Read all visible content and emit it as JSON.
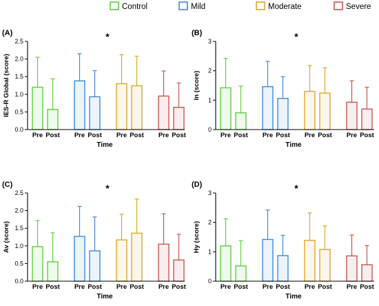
{
  "legend": [
    {
      "label": "Control",
      "color": "#5ccf3e"
    },
    {
      "label": "Mild",
      "color": "#3c88dc"
    },
    {
      "label": "Moderate",
      "color": "#d9a82a"
    },
    {
      "label": "Severe",
      "color": "#c9554d"
    }
  ],
  "chart_data": [
    {
      "type": "bar",
      "panel_label": "(A)",
      "ylabel": "IES-R Global (score)",
      "xlabel": "Time",
      "ylim": [
        0,
        2.5
      ],
      "yticks": [
        "0.0",
        "0.5",
        "1.0",
        "1.5",
        "2.0",
        "2.5"
      ],
      "ytick_values": [
        0,
        0.5,
        1.0,
        1.5,
        2.0,
        2.5
      ],
      "categories": [
        "Pre",
        "Post"
      ],
      "significance": "*",
      "groups": [
        {
          "name": "Control",
          "values": [
            1.2,
            0.57
          ],
          "errors": [
            0.85,
            0.87
          ]
        },
        {
          "name": "Mild",
          "values": [
            1.38,
            0.93
          ],
          "errors": [
            0.77,
            0.74
          ]
        },
        {
          "name": "Moderate",
          "values": [
            1.3,
            1.24
          ],
          "errors": [
            0.82,
            0.84
          ]
        },
        {
          "name": "Severe",
          "values": [
            0.95,
            0.63
          ],
          "errors": [
            0.71,
            0.69
          ]
        }
      ]
    },
    {
      "type": "bar",
      "panel_label": "(B)",
      "ylabel": "In (score)",
      "xlabel": "Time",
      "ylim": [
        0,
        3
      ],
      "yticks": [
        "0",
        "1",
        "2",
        "3"
      ],
      "ytick_values": [
        0,
        1,
        2,
        3
      ],
      "categories": [
        "Pre",
        "Post"
      ],
      "significance": "*",
      "groups": [
        {
          "name": "Control",
          "values": [
            1.42,
            0.57
          ],
          "errors": [
            1.0,
            0.91
          ]
        },
        {
          "name": "Mild",
          "values": [
            1.46,
            1.06
          ],
          "errors": [
            0.86,
            0.74
          ]
        },
        {
          "name": "Moderate",
          "values": [
            1.3,
            1.24
          ],
          "errors": [
            0.88,
            0.86
          ]
        },
        {
          "name": "Severe",
          "values": [
            0.93,
            0.7
          ],
          "errors": [
            0.73,
            0.74
          ]
        }
      ]
    },
    {
      "type": "bar",
      "panel_label": "(C)",
      "ylabel": "Av (score)",
      "xlabel": "Time",
      "ylim": [
        0,
        2.5
      ],
      "yticks": [
        "0.0",
        "0.5",
        "1.0",
        "1.5",
        "2.0",
        "2.5"
      ],
      "ytick_values": [
        0,
        0.5,
        1.0,
        1.5,
        2.0,
        2.5
      ],
      "categories": [
        "Pre",
        "Post"
      ],
      "significance": "*",
      "groups": [
        {
          "name": "Control",
          "values": [
            0.98,
            0.55
          ],
          "errors": [
            0.74,
            0.82
          ]
        },
        {
          "name": "Mild",
          "values": [
            1.27,
            0.86
          ],
          "errors": [
            0.85,
            0.96
          ]
        },
        {
          "name": "Moderate",
          "values": [
            1.17,
            1.36
          ],
          "errors": [
            0.73,
            0.97
          ]
        },
        {
          "name": "Severe",
          "values": [
            1.05,
            0.6
          ],
          "errors": [
            0.86,
            0.73
          ]
        }
      ]
    },
    {
      "type": "bar",
      "panel_label": "(D)",
      "ylabel": "Hy (score)",
      "xlabel": "Time",
      "ylim": [
        0,
        3
      ],
      "yticks": [
        "0",
        "1",
        "2",
        "3"
      ],
      "ytick_values": [
        0,
        1,
        2,
        3
      ],
      "categories": [
        "Pre",
        "Post"
      ],
      "significance": "*",
      "groups": [
        {
          "name": "Control",
          "values": [
            1.2,
            0.52
          ],
          "errors": [
            0.92,
            0.86
          ]
        },
        {
          "name": "Mild",
          "values": [
            1.42,
            0.87
          ],
          "errors": [
            1.0,
            0.69
          ]
        },
        {
          "name": "Moderate",
          "values": [
            1.39,
            1.08
          ],
          "errors": [
            0.93,
            0.8
          ]
        },
        {
          "name": "Severe",
          "values": [
            0.86,
            0.56
          ],
          "errors": [
            0.71,
            0.65
          ]
        }
      ]
    }
  ]
}
